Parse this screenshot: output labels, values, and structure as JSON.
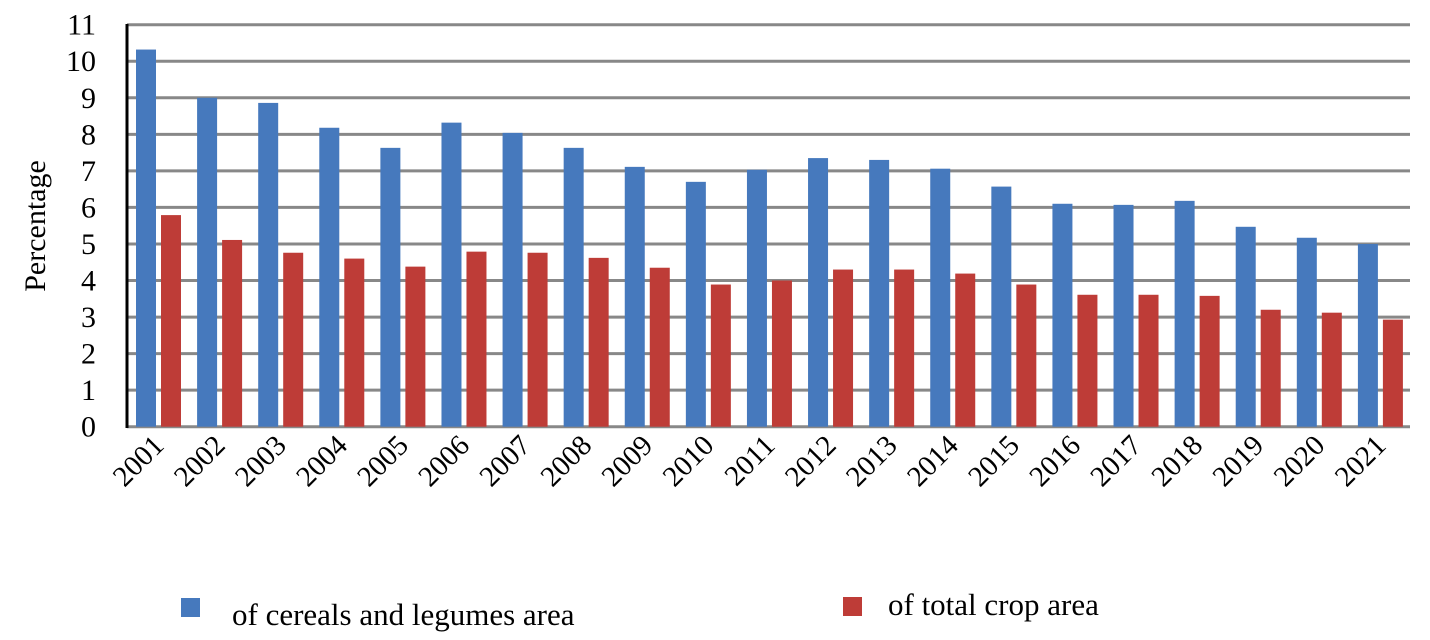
{
  "chart_data": {
    "type": "bar",
    "title": "",
    "xlabel": "",
    "ylabel": "Percentage",
    "ylim": [
      0,
      11
    ],
    "yticks": [
      "0",
      "1",
      "2",
      "3",
      "4",
      "5",
      "6",
      "7",
      "8",
      "9",
      "10",
      "11"
    ],
    "grid": true,
    "legend_position": "bottom",
    "categories": [
      "2001",
      "2002",
      "2003",
      "2004",
      "2005",
      "2006",
      "2007",
      "2008",
      "2009",
      "2010",
      "2011",
      "2012",
      "2013",
      "2014",
      "2015",
      "2016",
      "2017",
      "2018",
      "2019",
      "2020",
      "2021"
    ],
    "series": [
      {
        "name": "of cereals and legumes area",
        "color": "#4679bd",
        "values": [
          10.32,
          9.0,
          8.86,
          8.18,
          7.63,
          8.32,
          8.04,
          7.63,
          7.11,
          6.7,
          7.03,
          7.35,
          7.3,
          7.06,
          6.57,
          6.1,
          6.07,
          6.18,
          5.47,
          5.17,
          5.0
        ]
      },
      {
        "name": "of total crop area",
        "color": "#be3c37",
        "values": [
          5.79,
          5.11,
          4.76,
          4.6,
          4.38,
          4.79,
          4.76,
          4.62,
          4.35,
          3.89,
          4.0,
          4.3,
          4.3,
          4.19,
          3.89,
          3.61,
          3.61,
          3.58,
          3.2,
          3.12,
          2.93
        ]
      }
    ]
  }
}
